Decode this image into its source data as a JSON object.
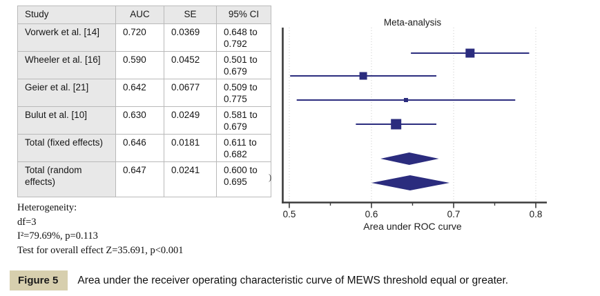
{
  "table": {
    "headers": [
      "Study",
      "AUC",
      "SE",
      "95% CI"
    ],
    "rows": [
      {
        "study": [
          "Vorwerk et al. [14]"
        ],
        "auc": "0.720",
        "se": "0.0369",
        "ci": [
          "0.648 to",
          "0.792"
        ]
      },
      {
        "study": [
          "Wheeler et al. [16]"
        ],
        "auc": "0.590",
        "se": "0.0452",
        "ci": [
          "0.501 to",
          "0.679"
        ]
      },
      {
        "study": [
          "Geier et al. [21]"
        ],
        "auc": "0.642",
        "se": "0.0677",
        "ci": [
          "0.509 to",
          "0.775"
        ]
      },
      {
        "study": [
          "Bulut et al. [10]"
        ],
        "auc": "0.630",
        "se": "0.0249",
        "ci": [
          "0.581 to",
          "0.679"
        ]
      },
      {
        "study": [
          "Total (fixed effects)"
        ],
        "auc": "0.646",
        "se": "0.0181",
        "ci": [
          "0.611 to",
          "0.682"
        ]
      },
      {
        "study": [
          "Total (random",
          "effects)"
        ],
        "auc": "0.647",
        "se": "0.0241",
        "ci": [
          "0.600 to",
          "0.695"
        ]
      }
    ]
  },
  "notes": [
    "Heterogeneity:",
    "df=3",
    "I²=79.69%, p=0.113",
    "Test for overall effect Z=35.691, p<0.001"
  ],
  "stray_glyph": ")",
  "caption": {
    "label": "Figure 5",
    "text": "Area under the receiver operating characteristic curve of MEWS threshold equal or greater."
  },
  "chart_data": {
    "type": "forest",
    "title": "Meta-analysis",
    "xlabel": "Area under ROC curve",
    "xlim": [
      0.5,
      0.8
    ],
    "xticks": [
      0.5,
      0.6,
      0.7,
      0.8
    ],
    "xtick_labels": [
      "0.5",
      "0.6",
      "0.7",
      "0.8"
    ],
    "minor_xticks": [
      0.55,
      0.65,
      0.75
    ],
    "grid": "dotted-vertical-at-major-ticks",
    "studies": [
      {
        "name": "Vorwerk et al. [14]",
        "auc": 0.72,
        "ci_low": 0.648,
        "ci_high": 0.792,
        "marker_size": 13
      },
      {
        "name": "Wheeler et al. [16]",
        "auc": 0.59,
        "ci_low": 0.501,
        "ci_high": 0.679,
        "marker_size": 11
      },
      {
        "name": "Geier et al. [21]",
        "auc": 0.642,
        "ci_low": 0.509,
        "ci_high": 0.775,
        "marker_size": 6
      },
      {
        "name": "Bulut et al. [10]",
        "auc": 0.63,
        "ci_low": 0.581,
        "ci_high": 0.679,
        "marker_size": 15
      }
    ],
    "totals": [
      {
        "name": "Total (fixed effects)",
        "auc": 0.646,
        "ci_low": 0.611,
        "ci_high": 0.682,
        "half_height": 9
      },
      {
        "name": "Total (random effects)",
        "auc": 0.647,
        "ci_low": 0.6,
        "ci_high": 0.695,
        "half_height": 11
      }
    ],
    "colors": {
      "marker": "#2b2c7e",
      "axis": "#3b3b3b",
      "gridline": "#c9c9c9",
      "tick_label": "#1c1c1c"
    }
  }
}
